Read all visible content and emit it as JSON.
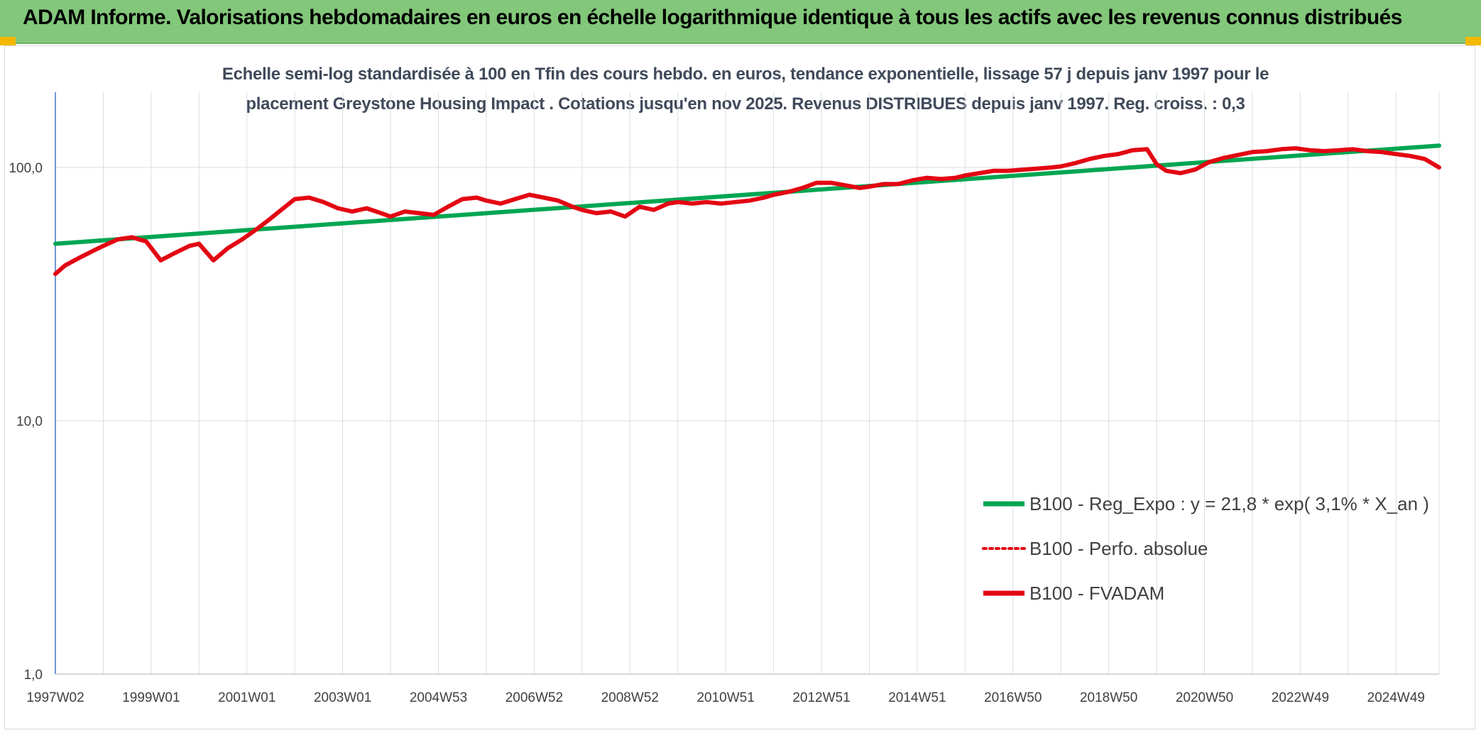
{
  "banner": {
    "title": "ADAM Informe. Valorisations hebdomadaires en euros en échelle logarithmique identique à tous les actifs avec les revenus connus distribués"
  },
  "colors": {
    "banner_bg": "#82c77a",
    "corner_accent": "#f5b800",
    "trend": "#00a651",
    "series": "#e30613",
    "grid": "#d9dde3",
    "axis": "#4472c4"
  },
  "chart_data": {
    "type": "line",
    "title_line1": "Echelle semi-log standardisée à 100 en Tfin des cours hebdo. en euros, tendance exponentielle, lissage 57 j depuis janv 1997 pour le",
    "title_line2": "placement Greystone Housing Impact . Cotations jusqu'en nov 2025. Revenus DISTRIBUES depuis janv 1997. Reg. croiss. : 0,3",
    "y_scale": "log",
    "ylim": [
      1,
      200
    ],
    "xlim": [
      1997.0,
      2025.9
    ],
    "y_ticks": [
      {
        "value": 1,
        "label": "1,0"
      },
      {
        "value": 10,
        "label": "10,0"
      },
      {
        "value": 100,
        "label": "100,0"
      }
    ],
    "x_ticks": [
      {
        "value": 1997.0,
        "label": "1997W02"
      },
      {
        "value": 1999.0,
        "label": "1999W01"
      },
      {
        "value": 2001.0,
        "label": "2001W01"
      },
      {
        "value": 2003.0,
        "label": "2003W01"
      },
      {
        "value": 2005.0,
        "label": "2004W53"
      },
      {
        "value": 2007.0,
        "label": "2006W52"
      },
      {
        "value": 2009.0,
        "label": "2008W52"
      },
      {
        "value": 2011.0,
        "label": "2010W51"
      },
      {
        "value": 2013.0,
        "label": "2012W51"
      },
      {
        "value": 2015.0,
        "label": "2014W51"
      },
      {
        "value": 2017.0,
        "label": "2016W50"
      },
      {
        "value": 2019.0,
        "label": "2018W50"
      },
      {
        "value": 2021.0,
        "label": "2020W50"
      },
      {
        "value": 2023.0,
        "label": "2022W49"
      },
      {
        "value": 2025.0,
        "label": "2024W49"
      }
    ],
    "grid": "vertical",
    "legend": {
      "placement": "bottom-right",
      "entries": [
        {
          "label": "B100 - Reg_Expo : y = 21,8 * exp( 3,1% *  X_an )",
          "style": "solid-thick",
          "color": "#00a651"
        },
        {
          "label": "B100 - Perfo. absolue",
          "style": "dotted",
          "color": "#e30613"
        },
        {
          "label": "B100 - FVADAM",
          "style": "solid-thick",
          "color": "#e30613"
        }
      ]
    },
    "series": [
      {
        "name": "B100 - Reg_Expo : y = 21,8 * exp( 3,1% *  X_an )",
        "color": "#00a651",
        "x": [
          1997.0,
          2025.9
        ],
        "values": [
          50,
          122
        ]
      },
      {
        "name": "B100 - FVADAM",
        "color": "#e30613",
        "x": [
          1997.0,
          1997.2,
          1997.5,
          1997.8,
          1998.0,
          1998.3,
          1998.6,
          1998.9,
          1999.2,
          1999.5,
          1999.8,
          2000.0,
          2000.3,
          2000.6,
          2000.9,
          2001.2,
          2001.5,
          2001.8,
          2002.0,
          2002.3,
          2002.6,
          2002.9,
          2003.2,
          2003.5,
          2003.8,
          2004.0,
          2004.3,
          2004.6,
          2004.9,
          2005.2,
          2005.5,
          2005.8,
          2006.0,
          2006.3,
          2006.6,
          2006.9,
          2007.2,
          2007.5,
          2007.8,
          2008.0,
          2008.3,
          2008.6,
          2008.9,
          2009.2,
          2009.5,
          2009.8,
          2010.0,
          2010.3,
          2010.6,
          2010.9,
          2011.2,
          2011.5,
          2011.8,
          2012.0,
          2012.3,
          2012.6,
          2012.9,
          2013.2,
          2013.5,
          2013.8,
          2014.0,
          2014.3,
          2014.6,
          2014.9,
          2015.2,
          2015.5,
          2015.8,
          2016.0,
          2016.3,
          2016.6,
          2016.9,
          2017.2,
          2017.5,
          2017.8,
          2018.0,
          2018.3,
          2018.6,
          2018.9,
          2019.2,
          2019.5,
          2019.8,
          2020.0,
          2020.2,
          2020.5,
          2020.8,
          2021.1,
          2021.4,
          2021.7,
          2022.0,
          2022.3,
          2022.6,
          2022.9,
          2023.2,
          2023.5,
          2023.8,
          2024.1,
          2024.4,
          2024.7,
          2025.0,
          2025.3,
          2025.6,
          2025.9
        ],
        "values": [
          38,
          41,
          44,
          47,
          49,
          52,
          53,
          51,
          43,
          46,
          49,
          50,
          43,
          48,
          52,
          57,
          63,
          70,
          75,
          76,
          73,
          69,
          67,
          69,
          66,
          64,
          67,
          66,
          65,
          70,
          75,
          76,
          74,
          72,
          75,
          78,
          76,
          74,
          70,
          68,
          66,
          67,
          64,
          70,
          68,
          72,
          73,
          72,
          73,
          72,
          73,
          74,
          76,
          78,
          80,
          83,
          87,
          87,
          85,
          83,
          84,
          86,
          86,
          89,
          91,
          90,
          91,
          93,
          95,
          97,
          97,
          98,
          99,
          100,
          101,
          104,
          108,
          111,
          113,
          117,
          118,
          103,
          97,
          95,
          98,
          105,
          109,
          112,
          115,
          116,
          118,
          119,
          117,
          116,
          117,
          118,
          116,
          115,
          113,
          111,
          108,
          100
        ]
      }
    ]
  }
}
